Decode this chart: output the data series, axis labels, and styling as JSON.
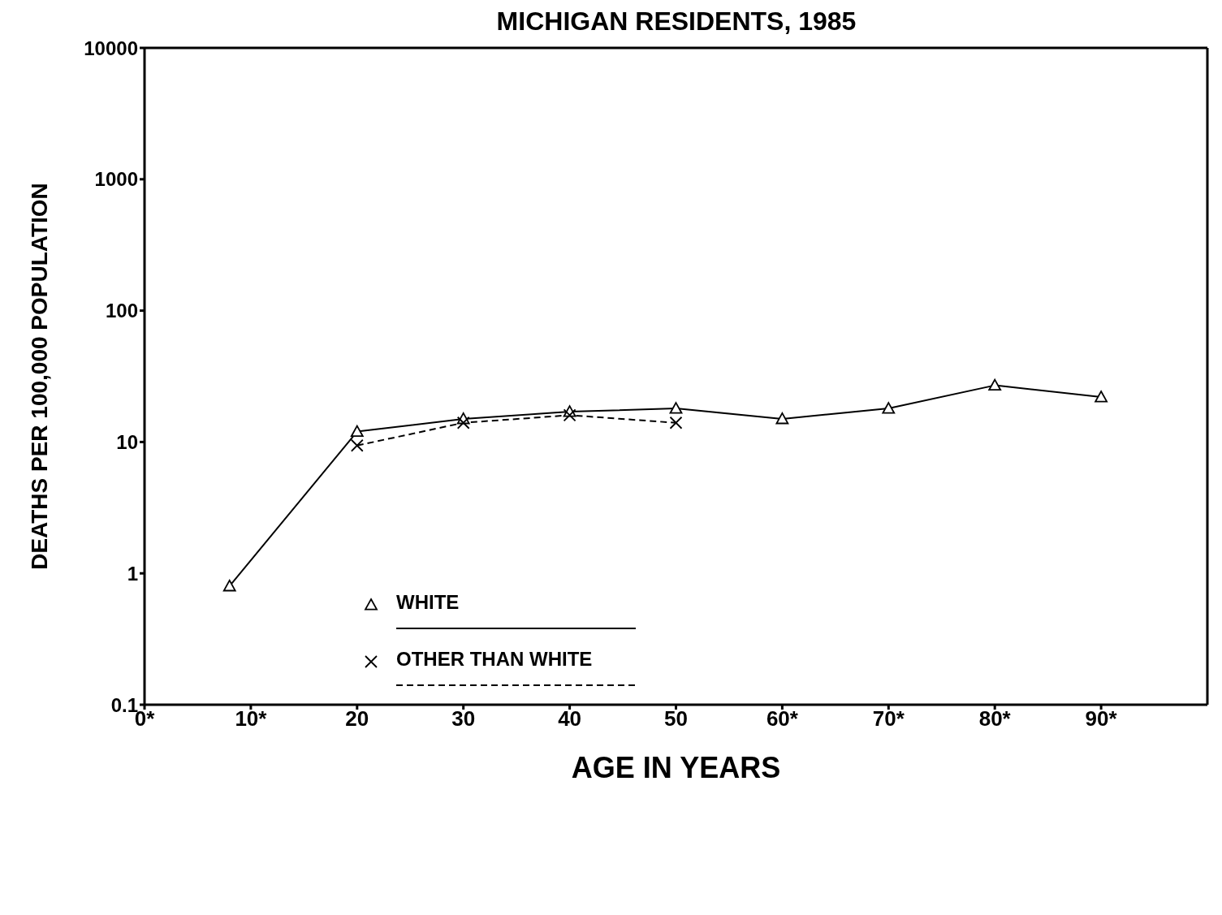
{
  "chart_data": {
    "type": "line",
    "title": "MICHIGAN RESIDENTS, 1985",
    "xlabel": "AGE IN YEARS",
    "ylabel": "DEATHS PER 100,000 POPULATION",
    "xlim": [
      0,
      100
    ],
    "xticks": [
      {
        "value": 0,
        "label": "0*"
      },
      {
        "value": 10,
        "label": "10*"
      },
      20,
      30,
      40,
      50,
      {
        "value": 60,
        "label": "60*"
      },
      {
        "value": 70,
        "label": "70*"
      },
      {
        "value": 80,
        "label": "80*"
      },
      {
        "value": 90,
        "label": "90*"
      }
    ],
    "ylim": [
      0.1,
      10000
    ],
    "yticks": [
      0.1,
      1,
      10,
      100,
      1000,
      10000
    ],
    "log": "y",
    "legend": "bottom",
    "series": [
      {
        "name": "WHITE",
        "color": "#000000",
        "marker": "triangle",
        "line_style": "solid",
        "x": [
          8,
          20,
          30,
          40,
          50,
          60,
          70,
          80,
          90
        ],
        "values": [
          0.8,
          12,
          15,
          17,
          18,
          15,
          18,
          27,
          22
        ]
      },
      {
        "name": "OTHER THAN WHITE",
        "color": "#000000",
        "marker": "cross",
        "line_style": "dashed",
        "x": [
          20,
          30,
          40,
          50
        ],
        "values": [
          9.4,
          14,
          16,
          14
        ]
      }
    ]
  }
}
